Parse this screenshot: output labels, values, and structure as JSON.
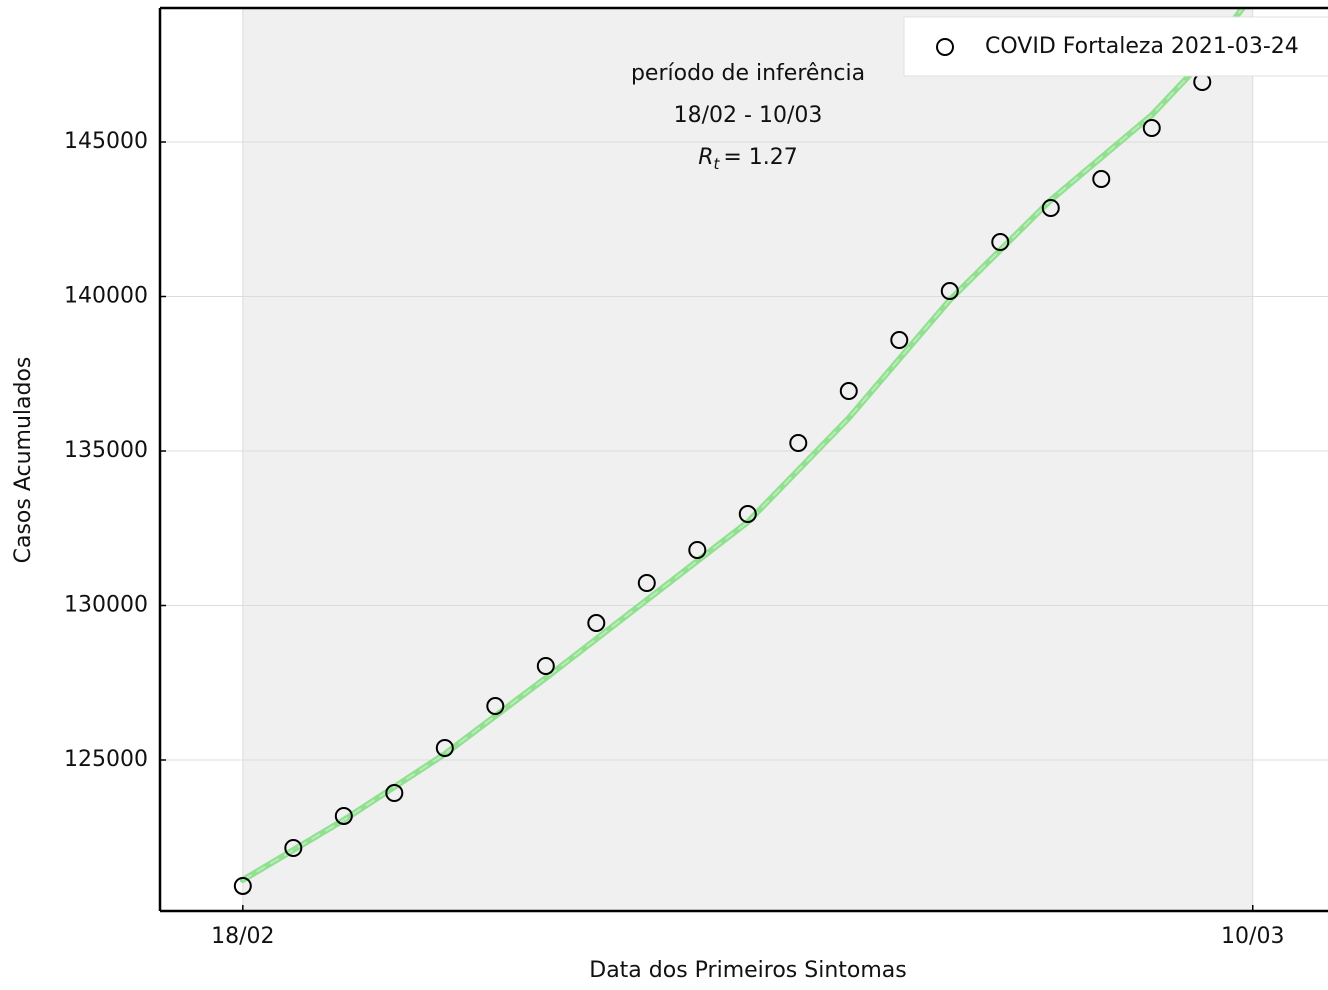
{
  "chart_data": {
    "type": "scatter",
    "xlabel": "Data dos Primeiros Sintomas",
    "ylabel": "Casos Acumulados",
    "xlim": [
      -1.64,
      21.49
    ],
    "ylim": [
      120113,
      149337
    ],
    "xticks": [
      {
        "value": 0,
        "label": "18/02"
      },
      {
        "value": 20,
        "label": "10/03"
      }
    ],
    "yticks": [
      125000,
      130000,
      135000,
      140000,
      145000
    ],
    "grid": true,
    "legend": "upper right",
    "annotations": [
      "período de inferência",
      "18/02 - 10/03"
    ],
    "rt_label": {
      "symbol": "R",
      "subscript": "t",
      "text": "= 1.27"
    },
    "series": [
      {
        "name": "COVID Fortaleza 2021-03-24",
        "color": "#000000",
        "marker": "circle",
        "x": [
          0,
          1,
          2,
          3,
          4,
          5,
          6,
          7,
          8,
          9,
          10,
          11,
          12,
          13,
          14,
          15,
          16,
          17,
          18,
          19
        ],
        "values": [
          120923,
          122152,
          123188,
          123932,
          125388,
          126747,
          128042,
          129433,
          130728,
          131796,
          132961,
          135259,
          136941,
          138592,
          140177,
          141763,
          142864,
          143802,
          145453,
          146942
        ]
      },
      {
        "color": "#90e090",
        "marker": "line",
        "x": [
          0,
          2,
          4,
          6,
          8,
          10,
          12,
          14,
          16,
          18,
          19,
          19.8
        ],
        "values": [
          121117,
          123058,
          125194,
          127654,
          130178,
          132702,
          136067,
          139886,
          143122,
          145871,
          147600,
          149337
        ]
      }
    ]
  }
}
